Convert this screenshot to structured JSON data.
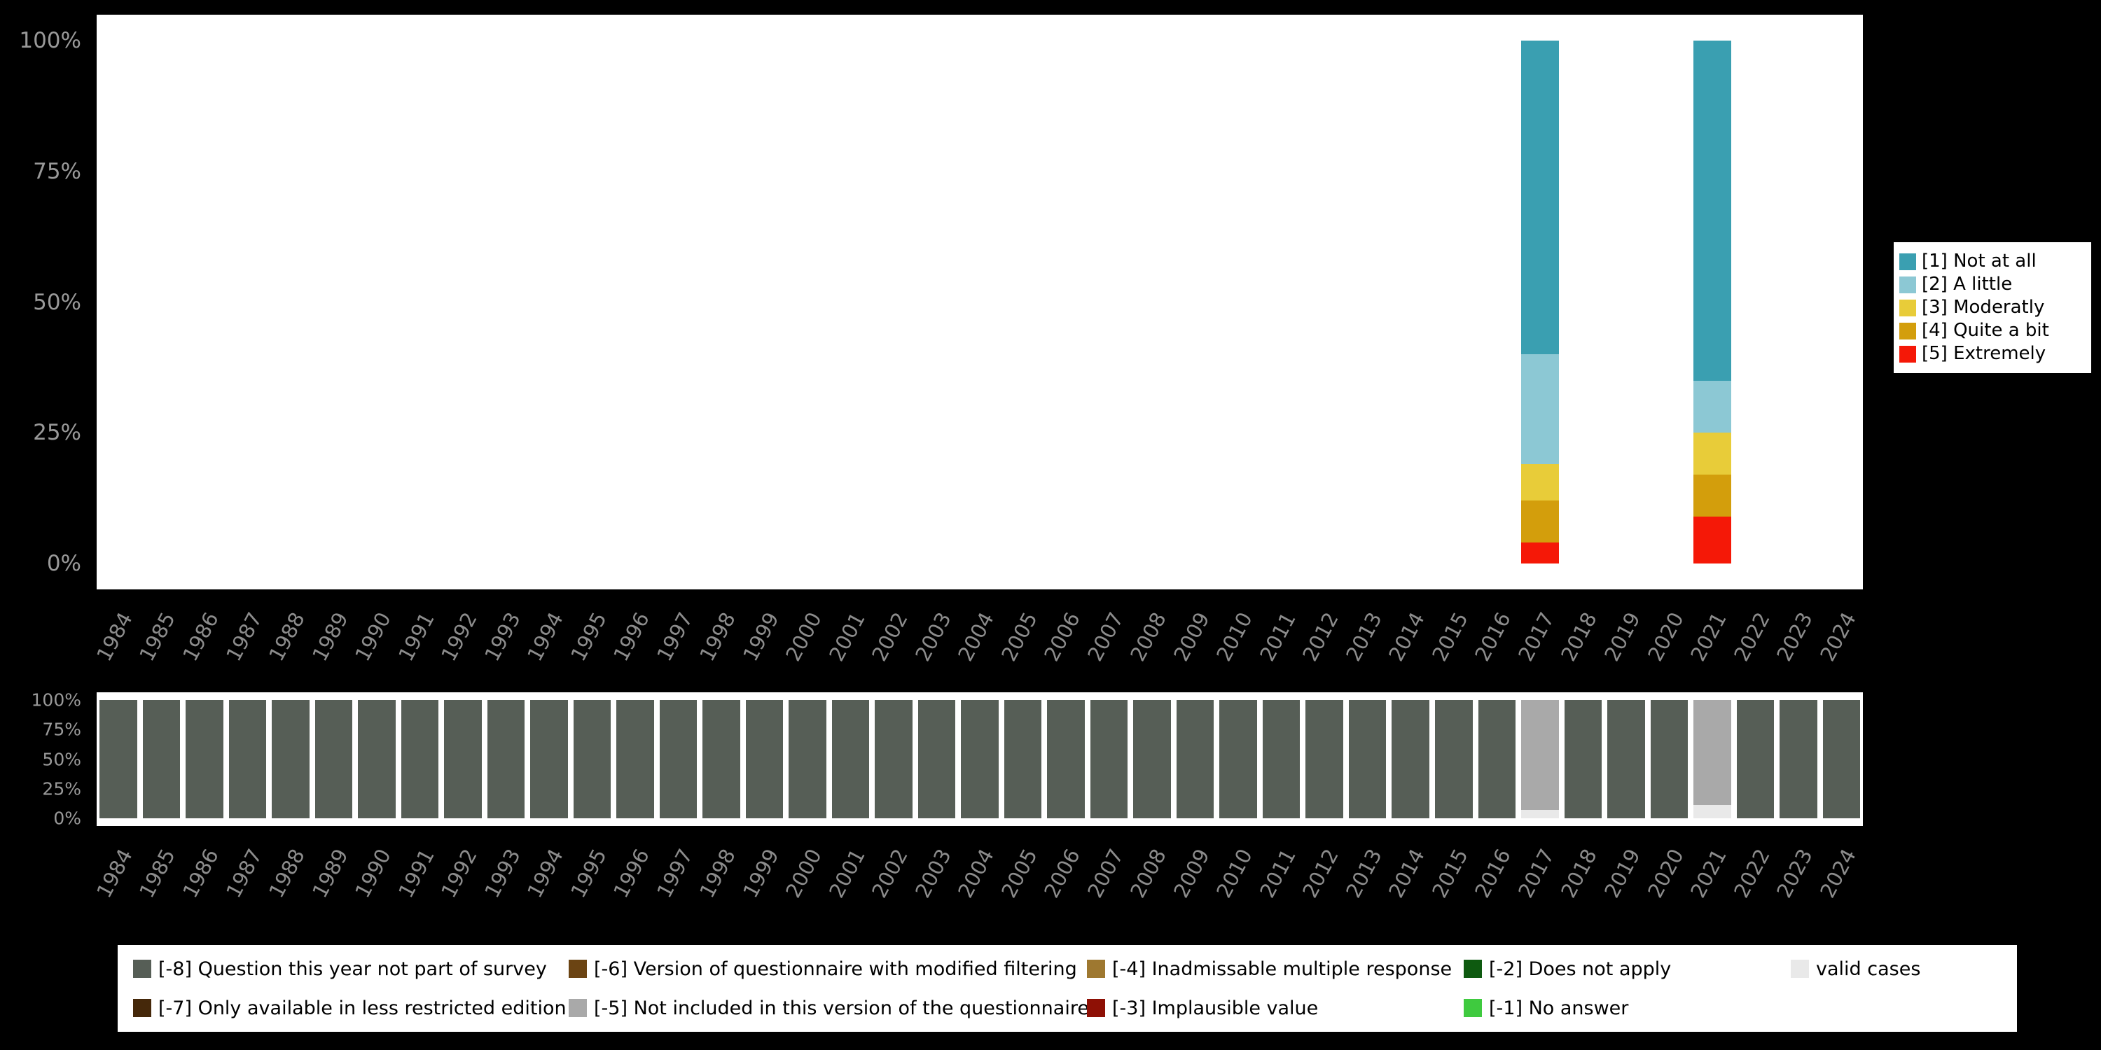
{
  "figure": {
    "background": "#000000",
    "plot_background": "#ffffff",
    "axis_text_color": "#8c8c8c"
  },
  "chart_data": [
    {
      "id": "answers-distribution",
      "type": "bar",
      "stacked": true,
      "title": "",
      "xlabel": "",
      "ylabel": "",
      "ylim": [
        0,
        100
      ],
      "ytick_labels": [
        "100%",
        "75%",
        "50%",
        "25%",
        "0%"
      ],
      "grid": false,
      "legend_position": "right",
      "x": [
        "1984",
        "1985",
        "1986",
        "1987",
        "1988",
        "1989",
        "1990",
        "1991",
        "1992",
        "1993",
        "1994",
        "1995",
        "1996",
        "1997",
        "1998",
        "1999",
        "2000",
        "2001",
        "2002",
        "2003",
        "2004",
        "2005",
        "2006",
        "2007",
        "2008",
        "2009",
        "2010",
        "2011",
        "2012",
        "2013",
        "2014",
        "2015",
        "2016",
        "2017",
        "2018",
        "2019",
        "2020",
        "2021",
        "2022",
        "2023",
        "2024"
      ],
      "series": [
        {
          "name": "[1] Not at all",
          "color": "#3a9fb1",
          "default": 0,
          "values": {
            "2017": 60,
            "2021": 65
          }
        },
        {
          "name": "[2] A little",
          "color": "#8cc8d4",
          "default": 0,
          "values": {
            "2017": 21,
            "2021": 10
          }
        },
        {
          "name": "[3] Moderatly",
          "color": "#e8cc39",
          "default": 0,
          "values": {
            "2017": 7,
            "2021": 8
          }
        },
        {
          "name": "[4] Quite a bit",
          "color": "#d39e0c",
          "default": 0,
          "values": {
            "2017": 8,
            "2021": 8
          }
        },
        {
          "name": "[5] Extremely",
          "color": "#f51807",
          "default": 0,
          "values": {
            "2017": 4,
            "2021": 9
          }
        }
      ]
    },
    {
      "id": "missings-distribution",
      "type": "bar",
      "stacked": true,
      "title": "",
      "xlabel": "",
      "ylabel": "",
      "ylim": [
        0,
        100
      ],
      "ytick_labels": [
        "100%",
        "75%",
        "50%",
        "25%",
        "0%"
      ],
      "grid": false,
      "legend_position": "bottom",
      "x": [
        "1984",
        "1985",
        "1986",
        "1987",
        "1988",
        "1989",
        "1990",
        "1991",
        "1992",
        "1993",
        "1994",
        "1995",
        "1996",
        "1997",
        "1998",
        "1999",
        "2000",
        "2001",
        "2002",
        "2003",
        "2004",
        "2005",
        "2006",
        "2007",
        "2008",
        "2009",
        "2010",
        "2011",
        "2012",
        "2013",
        "2014",
        "2015",
        "2016",
        "2017",
        "2018",
        "2019",
        "2020",
        "2021",
        "2022",
        "2023",
        "2024"
      ],
      "series": [
        {
          "name": "[-8] Question this year not part of survey",
          "color": "#565e56",
          "default": 100,
          "values": {
            "2017": 0,
            "2021": 0
          }
        },
        {
          "name": "[-5] Not included in this version of the questionnaire",
          "color": "#a9a9a9",
          "default": 0,
          "values": {
            "2017": 93,
            "2021": 89
          }
        },
        {
          "name": "valid cases",
          "color": "#e9e9e9",
          "default": 0,
          "values": {
            "2017": 7,
            "2021": 11
          }
        }
      ]
    }
  ],
  "legend_top": {
    "entries": [
      {
        "label": "[1] Not at all",
        "color": "#3a9fb1"
      },
      {
        "label": "[2] A little",
        "color": "#8cc8d4"
      },
      {
        "label": "[3] Moderatly",
        "color": "#e8cc39"
      },
      {
        "label": "[4] Quite a bit",
        "color": "#d39e0c"
      },
      {
        "label": "[5] Extremely",
        "color": "#f51807"
      }
    ]
  },
  "legend_bottom": {
    "rows": [
      [
        {
          "label": "[-8] Question this year not part of survey",
          "color": "#565e56"
        },
        {
          "label": "[-6] Version of questionnaire with modified filtering",
          "color": "#6b4413"
        },
        {
          "label": "[-4] Inadmissable multiple response",
          "color": "#9e7830"
        },
        {
          "label": "[-2] Does not apply",
          "color": "#0e5a10"
        },
        {
          "label": "valid cases",
          "color": "#e9e9e9"
        }
      ],
      [
        {
          "label": "[-7] Only available in less restricted edition",
          "color": "#45280a"
        },
        {
          "label": "[-5] Not included in this version of the questionnaire",
          "color": "#a9a9a9"
        },
        {
          "label": "[-3] Implausible value",
          "color": "#8e1005"
        },
        {
          "label": "[-1] No answer",
          "color": "#3fca3f"
        }
      ]
    ]
  }
}
